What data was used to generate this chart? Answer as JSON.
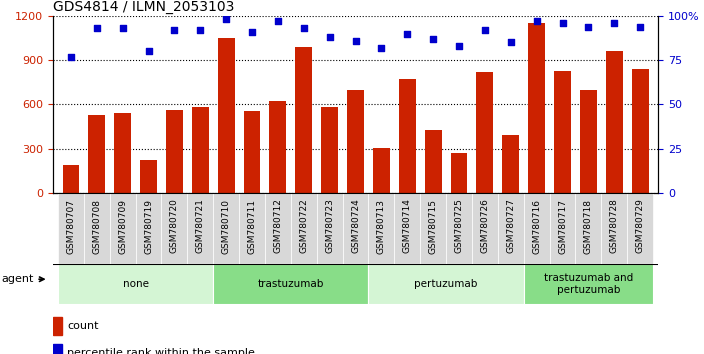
{
  "title": "GDS4814 / ILMN_2053103",
  "samples": [
    "GSM780707",
    "GSM780708",
    "GSM780709",
    "GSM780719",
    "GSM780720",
    "GSM780721",
    "GSM780710",
    "GSM780711",
    "GSM780712",
    "GSM780722",
    "GSM780723",
    "GSM780724",
    "GSM780713",
    "GSM780714",
    "GSM780715",
    "GSM780725",
    "GSM780726",
    "GSM780727",
    "GSM780716",
    "GSM780717",
    "GSM780718",
    "GSM780728",
    "GSM780729"
  ],
  "counts": [
    190,
    530,
    545,
    220,
    560,
    580,
    1050,
    555,
    625,
    990,
    580,
    700,
    305,
    770,
    430,
    270,
    820,
    390,
    1150,
    830,
    700,
    960,
    840
  ],
  "percentiles": [
    77,
    93,
    93,
    80,
    92,
    92,
    98,
    91,
    97,
    93,
    88,
    86,
    82,
    90,
    87,
    83,
    92,
    85,
    97,
    96,
    94,
    96,
    94
  ],
  "groups": [
    {
      "label": "none",
      "start": 0,
      "end": 6,
      "color": "#d4f5d4"
    },
    {
      "label": "trastuzumab",
      "start": 6,
      "end": 12,
      "color": "#88dd88"
    },
    {
      "label": "pertuzumab",
      "start": 12,
      "end": 18,
      "color": "#d4f5d4"
    },
    {
      "label": "trastuzumab and\npertuzumab",
      "start": 18,
      "end": 23,
      "color": "#88dd88"
    }
  ],
  "bar_color": "#cc2200",
  "dot_color": "#0000cc",
  "ylim_left": [
    0,
    1200
  ],
  "ylim_right": [
    0,
    100
  ],
  "yticks_left": [
    0,
    300,
    600,
    900,
    1200
  ],
  "yticks_right": [
    0,
    25,
    50,
    75,
    100
  ],
  "ylabel_left_color": "#cc2200",
  "ylabel_right_color": "#0000cc",
  "legend_count_label": "count",
  "legend_pct_label": "percentile rank within the sample",
  "agent_label": "agent"
}
